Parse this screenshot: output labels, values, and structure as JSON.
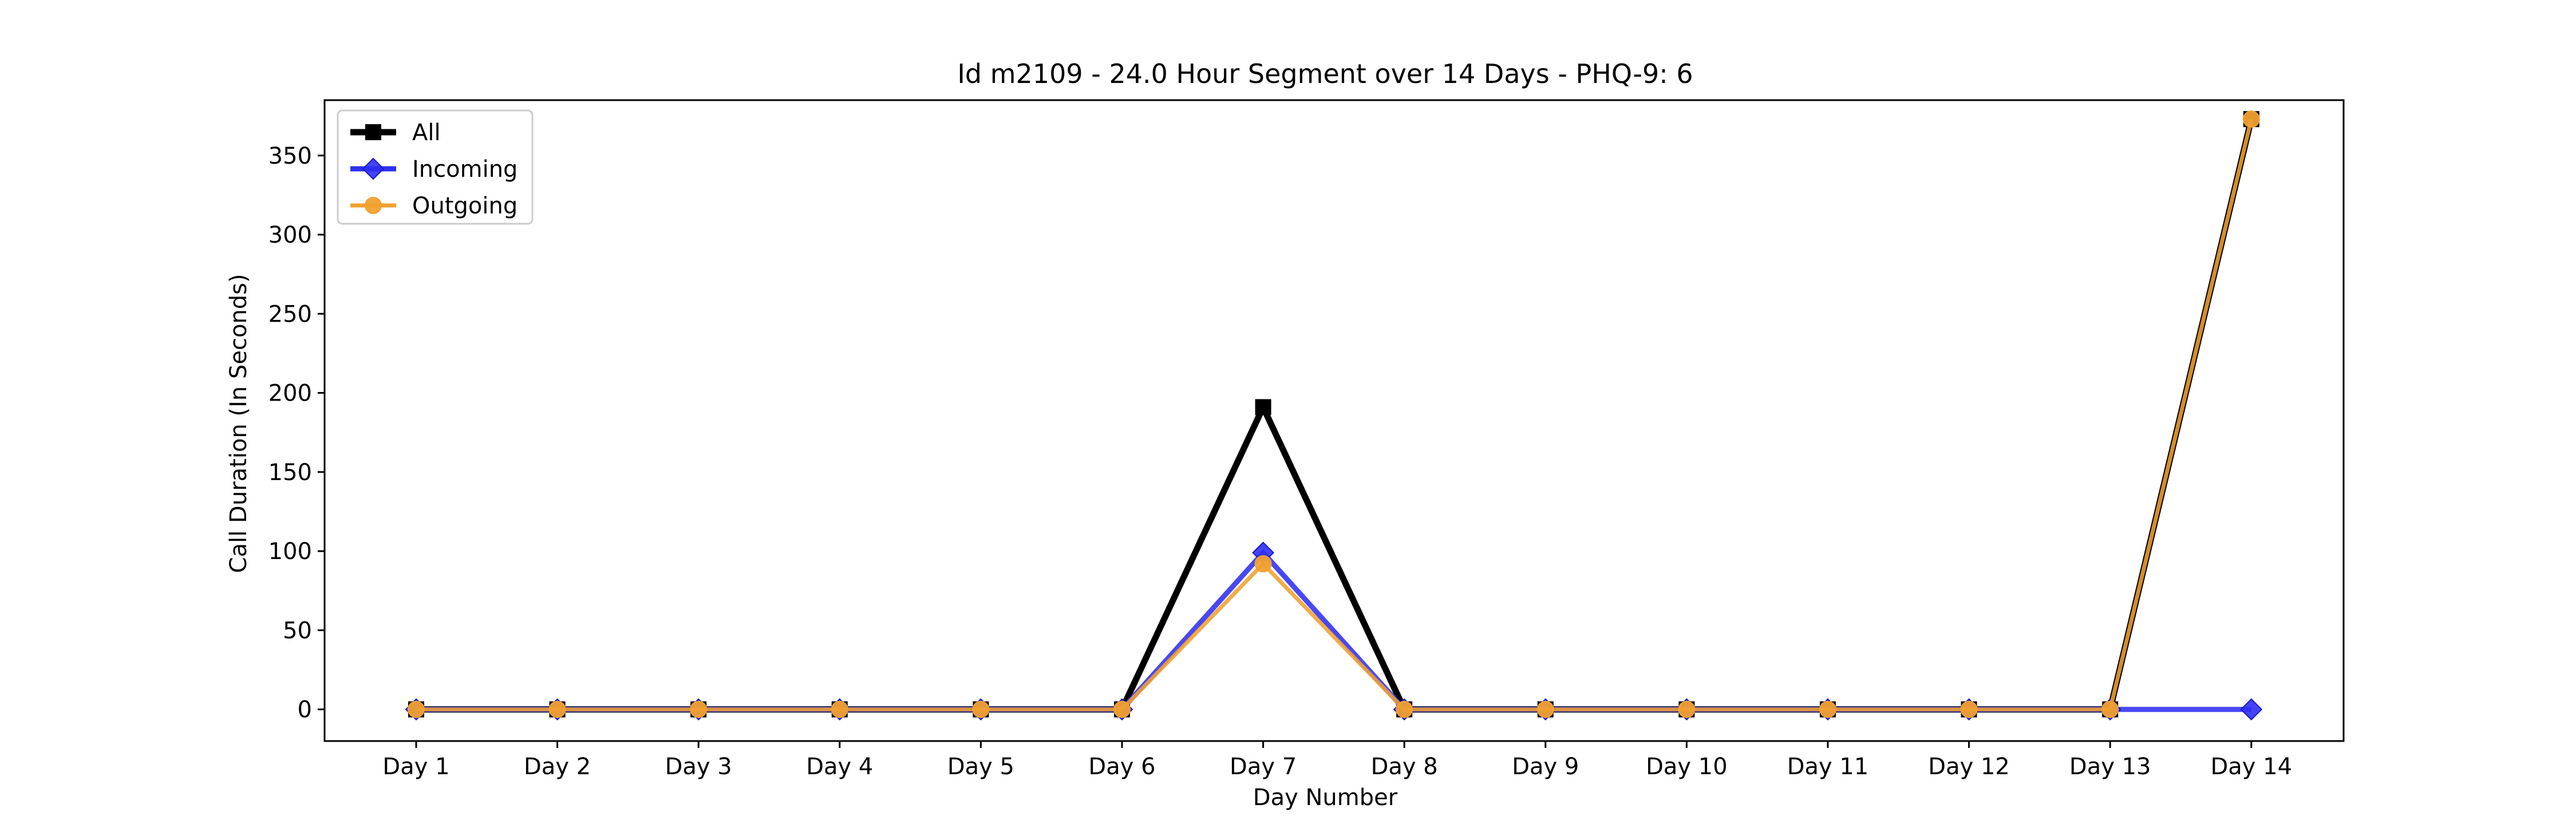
{
  "chart_data": {
    "type": "line",
    "title": "Id m2109 - 24.0 Hour Segment over 14 Days - PHQ-9: 6",
    "xlabel": "Day Number",
    "ylabel": "Call Duration (In Seconds)",
    "categories": [
      "Day 1",
      "Day 2",
      "Day 3",
      "Day 4",
      "Day 5",
      "Day 6",
      "Day 7",
      "Day 8",
      "Day 9",
      "Day 10",
      "Day 11",
      "Day 12",
      "Day 13",
      "Day 14"
    ],
    "ylim": [
      -20,
      385
    ],
    "yticks": [
      0,
      50,
      100,
      150,
      200,
      250,
      300,
      350
    ],
    "grid": false,
    "legend_position": "top-left",
    "series": [
      {
        "name": "All",
        "color": "#000000",
        "marker": "square",
        "values": [
          0,
          0,
          0,
          0,
          0,
          0,
          191,
          0,
          0,
          0,
          0,
          0,
          0,
          373
        ]
      },
      {
        "name": "Incoming",
        "color": "#2f2ff2",
        "marker": "diamond",
        "values": [
          0,
          0,
          0,
          0,
          0,
          0,
          99,
          0,
          0,
          0,
          0,
          0,
          0,
          0
        ]
      },
      {
        "name": "Outgoing",
        "color": "#f0a030",
        "marker": "circle",
        "values": [
          0,
          0,
          0,
          0,
          0,
          0,
          92,
          0,
          0,
          0,
          0,
          0,
          0,
          373
        ]
      }
    ]
  }
}
